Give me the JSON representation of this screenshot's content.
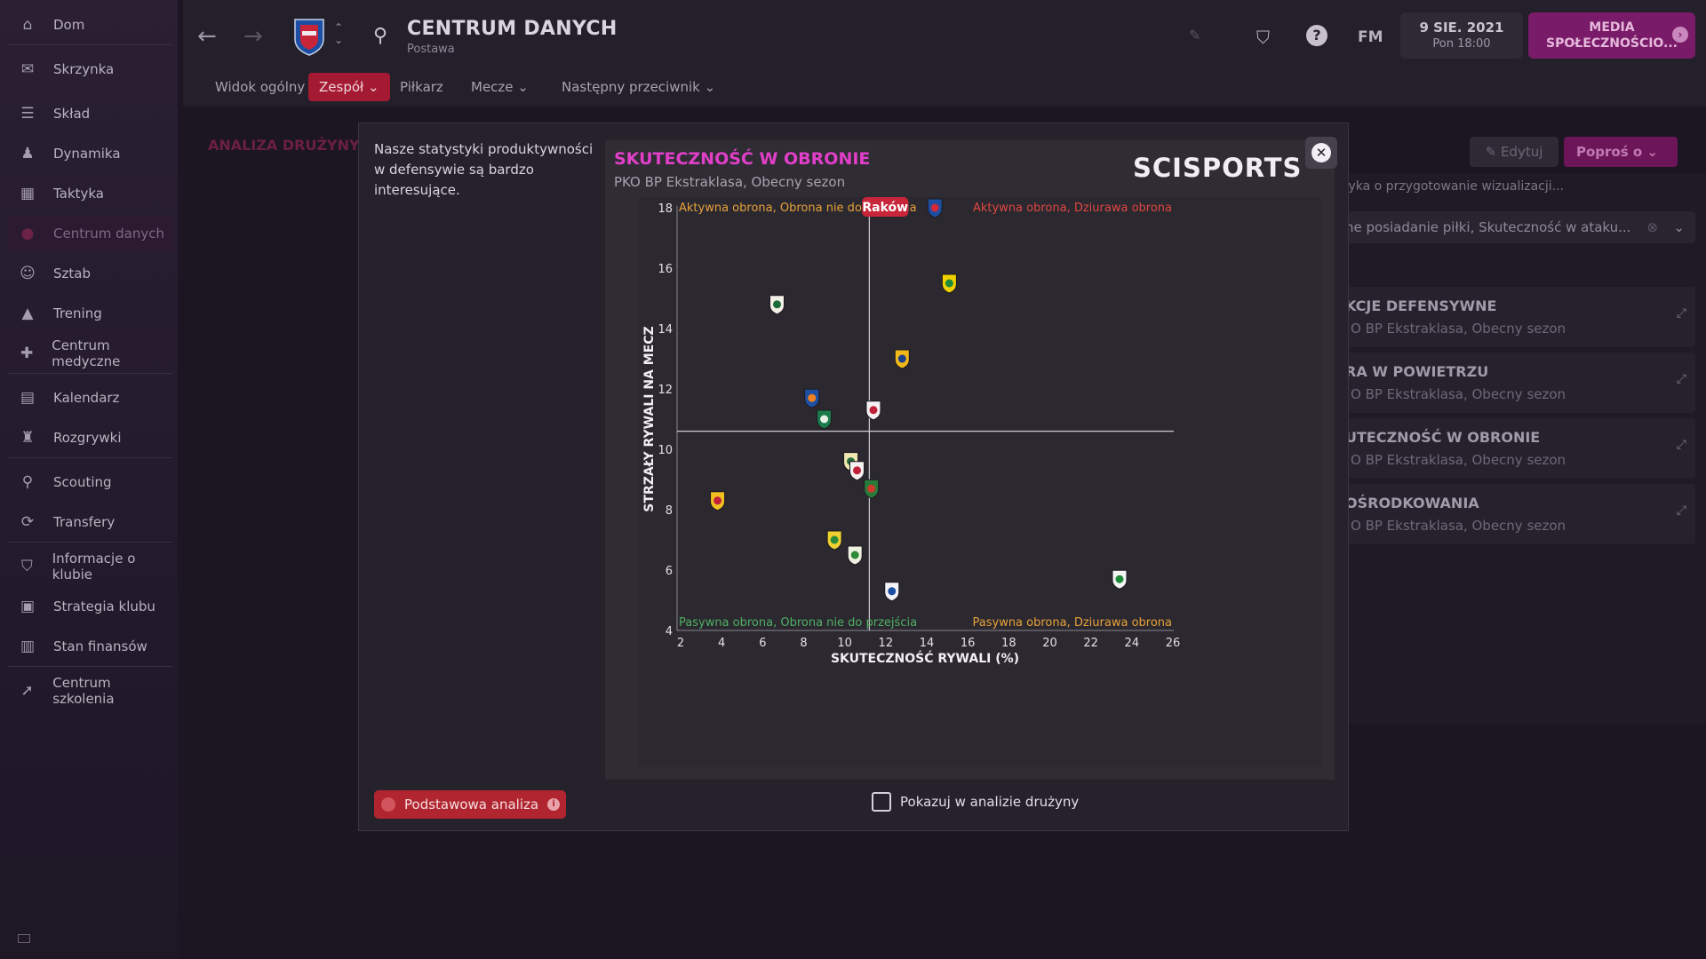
{
  "sidebar": {
    "items": [
      {
        "label": "Dom",
        "icon": "home-icon"
      },
      {
        "label": "Skrzynka",
        "icon": "inbox-icon"
      },
      {
        "label": "Skład",
        "icon": "squad-icon"
      },
      {
        "label": "Dynamika",
        "icon": "dynamics-icon"
      },
      {
        "label": "Taktyka",
        "icon": "tactics-icon"
      },
      {
        "label": "Centrum danych",
        "icon": "data-hub-icon"
      },
      {
        "label": "Sztab",
        "icon": "staff-icon"
      },
      {
        "label": "Trening",
        "icon": "training-icon"
      },
      {
        "label": "Centrum medyczne",
        "icon": "medical-icon"
      },
      {
        "label": "Kalendarz",
        "icon": "calendar-icon"
      },
      {
        "label": "Rozgrywki",
        "icon": "trophy-icon"
      },
      {
        "label": "Scouting",
        "icon": "scouting-icon"
      },
      {
        "label": "Transfery",
        "icon": "transfers-icon"
      },
      {
        "label": "Informacje o klubie",
        "icon": "club-info-icon"
      },
      {
        "label": "Strategia klubu",
        "icon": "strategy-icon"
      },
      {
        "label": "Stan finansów",
        "icon": "finances-icon"
      },
      {
        "label": "Centrum szkolenia",
        "icon": "development-icon"
      }
    ]
  },
  "header": {
    "title": "CENTRUM DANYCH",
    "subtitle": "Postawa",
    "date": "9 SIE. 2021",
    "time": "Pon 18:00",
    "media_button": "MEDIA SPOŁECZNOŚCIO...",
    "fm_label": "FM"
  },
  "tabs": [
    {
      "label": "Widok ogólny"
    },
    {
      "label": "Zespół ⌄"
    },
    {
      "label": "Piłkarz"
    },
    {
      "label": "Mecze ⌄"
    },
    {
      "label": "Następny przeciwnik ⌄"
    }
  ],
  "background": {
    "section_title": "ANALIZA DRUŻYNY",
    "edit_button": "Edytuj",
    "ask_button": "Poproś o",
    "hint": "tyka o przygotowanie wizualizacji...",
    "select_value": "ne posiadanie piłki, Skuteczność w ataku...",
    "cards": [
      {
        "title": "KCJE DEFENSYWNE",
        "sub": "O BP Ekstraklasa, Obecny sezon"
      },
      {
        "title": "RA W POWIETRZU",
        "sub": "O BP Ekstraklasa, Obecny sezon"
      },
      {
        "title": "UTECZNOŚĆ W OBRONIE",
        "sub": "O BP Ekstraklasa, Obecny sezon"
      },
      {
        "title": "OŚRODKOWANIA",
        "sub": "O BP Ekstraklasa, Obecny sezon"
      }
    ]
  },
  "modal": {
    "description": "Nasze statystyki produktywności w defensywie są bardzo interesujące.",
    "chart_title": "SKUTECZNOŚĆ W OBRONIE",
    "chart_subtitle": "PKO BP Ekstraklasa, Obecny sezon",
    "logo_text": "SCISPORTS",
    "basic_analysis_button": "Podstawowa analiza",
    "show_in_team_analysis": "Pokazuj w analizie drużyny"
  },
  "chart_data": {
    "type": "scatter",
    "xlabel": "SKUTECZNOŚĆ RYWALI (%)",
    "ylabel": "STRZAŁY RYWALI NA MECZ",
    "xlim": [
      2,
      26
    ],
    "ylim": [
      4,
      18
    ],
    "xticks": [
      2,
      4,
      6,
      8,
      10,
      12,
      14,
      16,
      18,
      20,
      22,
      24,
      26
    ],
    "yticks": [
      4,
      6,
      8,
      10,
      12,
      14,
      16,
      18
    ],
    "x_divider": 11.2,
    "y_divider": 10.6,
    "quadrants": {
      "top_left": {
        "label": "Aktywna obrona, Obrona nie do przejścia",
        "color": "#e8a238"
      },
      "top_right": {
        "label": "Aktywna obrona, Dziurawa obrona",
        "color": "#e0473f"
      },
      "bottom_left": {
        "label": "Pasywna obrona, Obrona nie do przejścia",
        "color": "#4fb062"
      },
      "bottom_right": {
        "label": "Pasywna obrona, Dziurawa obrona",
        "color": "#e8a238"
      }
    },
    "highlight_label": "Raków",
    "points": [
      {
        "x": 14.4,
        "y": 18.0,
        "team": "Raków",
        "highlight": true,
        "colors": [
          "#1c4fa3",
          "#d32a3a"
        ]
      },
      {
        "x": 15.1,
        "y": 15.5,
        "colors": [
          "#f0d000",
          "#1d8a3a"
        ]
      },
      {
        "x": 6.7,
        "y": 14.8,
        "colors": [
          "#f4f0e6",
          "#1b6b3a"
        ]
      },
      {
        "x": 12.8,
        "y": 13.0,
        "colors": [
          "#f0b818",
          "#1d3f8a"
        ]
      },
      {
        "x": 8.4,
        "y": 11.7,
        "colors": [
          "#1d4fa3",
          "#f08020"
        ]
      },
      {
        "x": 11.4,
        "y": 11.3,
        "colors": [
          "#f4f0f4",
          "#c0203a"
        ]
      },
      {
        "x": 9.0,
        "y": 11.0,
        "colors": [
          "#1b7a4a",
          "#e8f0ea"
        ]
      },
      {
        "x": 10.3,
        "y": 9.6,
        "colors": [
          "#f0e8b0",
          "#2a6a3a"
        ]
      },
      {
        "x": 10.6,
        "y": 9.3,
        "colors": [
          "#f4f0f0",
          "#c0203a"
        ]
      },
      {
        "x": 11.3,
        "y": 8.7,
        "colors": [
          "#2a7a3a",
          "#d03a2a"
        ]
      },
      {
        "x": 3.8,
        "y": 8.3,
        "colors": [
          "#f0c020",
          "#c0203a"
        ]
      },
      {
        "x": 9.5,
        "y": 7.0,
        "colors": [
          "#f0d030",
          "#2a8a3a"
        ]
      },
      {
        "x": 10.5,
        "y": 6.5,
        "colors": [
          "#f0f0e0",
          "#2a8a3a"
        ]
      },
      {
        "x": 12.3,
        "y": 5.3,
        "colors": [
          "#f4f4f8",
          "#1d4fa3"
        ]
      },
      {
        "x": 23.4,
        "y": 5.7,
        "colors": [
          "#f4f4f4",
          "#1d8a3a"
        ]
      }
    ]
  }
}
